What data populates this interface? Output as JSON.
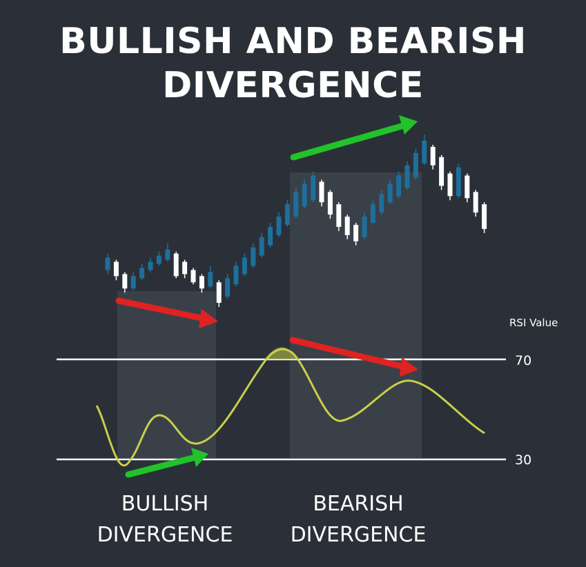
{
  "title": {
    "line1": "BULLISH AND BEARISH",
    "line2": "DIVERGENCE"
  },
  "rsi": {
    "axis_label": "RSI Value",
    "upper_level": "70",
    "lower_level": "30"
  },
  "captions": {
    "bullish": {
      "line1": "BULLISH",
      "line2": "DIVERGENCE"
    },
    "bearish": {
      "line1": "BEARISH",
      "line2": "DIVERGENCE"
    }
  },
  "colors": {
    "background": "#2b3038",
    "bull_candle": "#1e6f9c",
    "bear_candle": "#ffffff",
    "rsi_line": "#c8d04a",
    "up_arrow": "#22c22a",
    "down_arrow": "#e02222",
    "highlight": "#3d434b"
  },
  "candles": [
    {
      "d": "bull",
      "o": 0.52,
      "c": 0.58,
      "h": 0.6,
      "l": 0.5
    },
    {
      "d": "bear",
      "o": 0.56,
      "c": 0.49,
      "h": 0.57,
      "l": 0.47
    },
    {
      "d": "bear",
      "o": 0.5,
      "c": 0.43,
      "h": 0.51,
      "l": 0.41
    },
    {
      "d": "bull",
      "o": 0.43,
      "c": 0.49,
      "h": 0.51,
      "l": 0.42
    },
    {
      "d": "bull",
      "o": 0.48,
      "c": 0.53,
      "h": 0.55,
      "l": 0.47
    },
    {
      "d": "bull",
      "o": 0.52,
      "c": 0.56,
      "h": 0.58,
      "l": 0.51
    },
    {
      "d": "bull",
      "o": 0.55,
      "c": 0.59,
      "h": 0.61,
      "l": 0.54
    },
    {
      "d": "bull",
      "o": 0.57,
      "c": 0.62,
      "h": 0.65,
      "l": 0.56
    },
    {
      "d": "bear",
      "o": 0.6,
      "c": 0.49,
      "h": 0.61,
      "l": 0.48
    },
    {
      "d": "bear",
      "o": 0.56,
      "c": 0.5,
      "h": 0.57,
      "l": 0.48
    },
    {
      "d": "bear",
      "o": 0.52,
      "c": 0.46,
      "h": 0.53,
      "l": 0.45
    },
    {
      "d": "bear",
      "o": 0.49,
      "c": 0.43,
      "h": 0.5,
      "l": 0.41
    },
    {
      "d": "bull",
      "o": 0.44,
      "c": 0.51,
      "h": 0.54,
      "l": 0.43
    },
    {
      "d": "bear",
      "o": 0.46,
      "c": 0.36,
      "h": 0.47,
      "l": 0.34
    },
    {
      "d": "bull",
      "o": 0.39,
      "c": 0.48,
      "h": 0.5,
      "l": 0.38
    },
    {
      "d": "bull",
      "o": 0.45,
      "c": 0.54,
      "h": 0.56,
      "l": 0.44
    },
    {
      "d": "bull",
      "o": 0.5,
      "c": 0.58,
      "h": 0.6,
      "l": 0.49
    },
    {
      "d": "bull",
      "o": 0.54,
      "c": 0.63,
      "h": 0.65,
      "l": 0.53
    },
    {
      "d": "bull",
      "o": 0.59,
      "c": 0.68,
      "h": 0.7,
      "l": 0.58
    },
    {
      "d": "bull",
      "o": 0.64,
      "c": 0.73,
      "h": 0.75,
      "l": 0.63
    },
    {
      "d": "bull",
      "o": 0.69,
      "c": 0.78,
      "h": 0.8,
      "l": 0.68
    },
    {
      "d": "bull",
      "o": 0.74,
      "c": 0.84,
      "h": 0.86,
      "l": 0.73
    },
    {
      "d": "bull",
      "o": 0.78,
      "c": 0.9,
      "h": 0.92,
      "l": 0.77
    },
    {
      "d": "bull",
      "o": 0.83,
      "c": 0.94,
      "h": 0.96,
      "l": 0.82
    },
    {
      "d": "bull",
      "o": 0.86,
      "c": 0.98,
      "h": 1.0,
      "l": 0.85
    },
    {
      "d": "bear",
      "o": 0.95,
      "c": 0.85,
      "h": 0.96,
      "l": 0.83
    },
    {
      "d": "bear",
      "o": 0.9,
      "c": 0.79,
      "h": 0.91,
      "l": 0.77
    },
    {
      "d": "bear",
      "o": 0.84,
      "c": 0.73,
      "h": 0.85,
      "l": 0.71
    },
    {
      "d": "bear",
      "o": 0.78,
      "c": 0.69,
      "h": 0.79,
      "l": 0.67
    },
    {
      "d": "bear",
      "o": 0.74,
      "c": 0.66,
      "h": 0.75,
      "l": 0.64
    },
    {
      "d": "bull",
      "o": 0.68,
      "c": 0.78,
      "h": 0.8,
      "l": 0.67
    },
    {
      "d": "bull",
      "o": 0.75,
      "c": 0.84,
      "h": 0.86,
      "l": 0.74
    },
    {
      "d": "bull",
      "o": 0.8,
      "c": 0.89,
      "h": 0.91,
      "l": 0.79
    },
    {
      "d": "bull",
      "o": 0.85,
      "c": 0.94,
      "h": 0.96,
      "l": 0.84
    },
    {
      "d": "bull",
      "o": 0.88,
      "c": 0.98,
      "h": 1.0,
      "l": 0.87
    },
    {
      "d": "bull",
      "o": 0.92,
      "c": 1.03,
      "h": 1.05,
      "l": 0.91
    },
    {
      "d": "bull",
      "o": 0.97,
      "c": 1.09,
      "h": 1.11,
      "l": 0.96
    },
    {
      "d": "bull",
      "o": 1.04,
      "c": 1.15,
      "h": 1.18,
      "l": 1.03
    },
    {
      "d": "bear",
      "o": 1.12,
      "c": 1.03,
      "h": 1.13,
      "l": 1.01
    },
    {
      "d": "bear",
      "o": 1.07,
      "c": 0.93,
      "h": 1.08,
      "l": 0.91
    },
    {
      "d": "bear",
      "o": 0.99,
      "c": 0.88,
      "h": 1.0,
      "l": 0.86
    },
    {
      "d": "bull",
      "o": 0.88,
      "c": 1.02,
      "h": 1.04,
      "l": 0.87
    },
    {
      "d": "bear",
      "o": 0.98,
      "c": 0.87,
      "h": 0.99,
      "l": 0.85
    },
    {
      "d": "bear",
      "o": 0.9,
      "c": 0.8,
      "h": 0.91,
      "l": 0.78
    },
    {
      "d": "bear",
      "o": 0.84,
      "c": 0.72,
      "h": 0.85,
      "l": 0.7
    }
  ]
}
